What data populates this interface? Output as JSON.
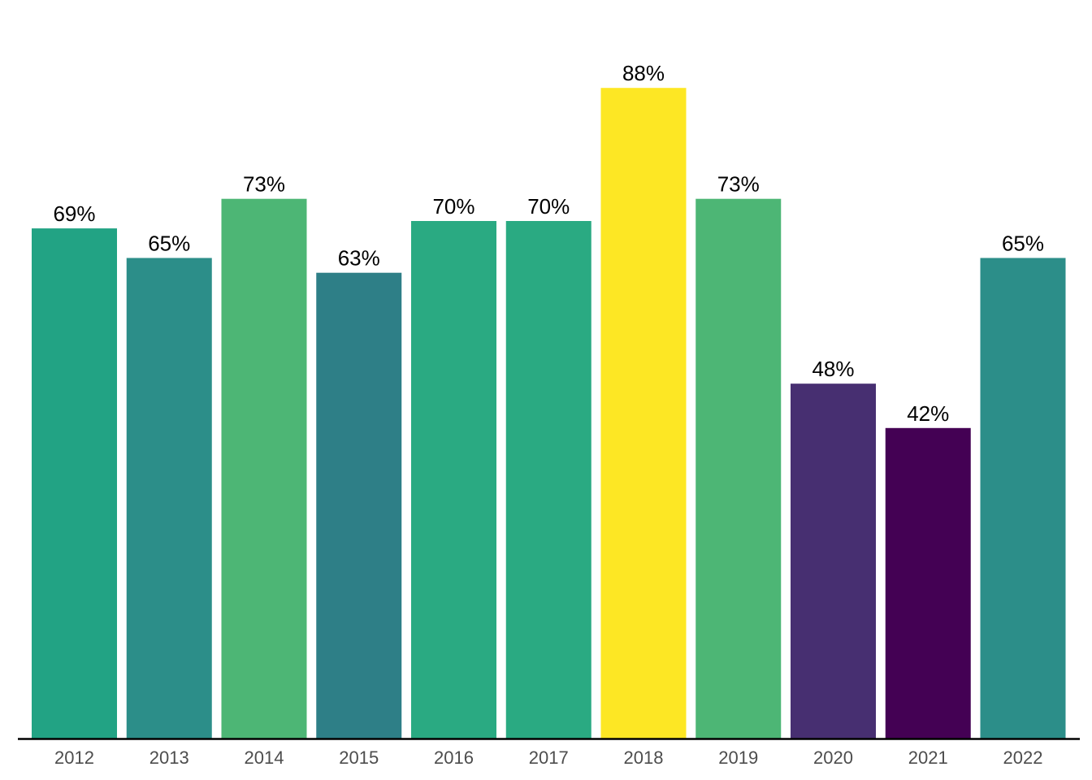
{
  "chart_data": {
    "type": "bar",
    "categories": [
      "2012",
      "2013",
      "2014",
      "2015",
      "2016",
      "2017",
      "2018",
      "2019",
      "2020",
      "2021",
      "2022"
    ],
    "values": [
      69,
      65,
      73,
      63,
      70,
      70,
      88,
      73,
      48,
      42,
      65
    ],
    "value_labels": [
      "69%",
      "65%",
      "73%",
      "63%",
      "70%",
      "70%",
      "88%",
      "73%",
      "48%",
      "42%",
      "65%"
    ],
    "colors": [
      "#22a384",
      "#2c8e89",
      "#4db675",
      "#2e7f87",
      "#2aaa82",
      "#2aaa82",
      "#fde724",
      "#4db675",
      "#472f71",
      "#440154",
      "#2c8e89"
    ],
    "ylim": [
      0,
      100
    ],
    "title": "",
    "xlabel": "",
    "ylabel": "",
    "grid": false,
    "legend": "none"
  }
}
